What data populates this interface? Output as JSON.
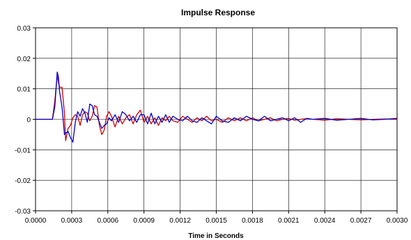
{
  "chart_data": {
    "type": "line",
    "title": "Impulse Response",
    "xlabel": "Time in Seconds",
    "ylabel": "",
    "xlim": [
      0,
      0.003
    ],
    "ylim": [
      -0.03,
      0.03
    ],
    "grid": true,
    "legend": "none",
    "x_ticks": [
      "0.0000",
      "0.0003",
      "0.0006",
      "0.0009",
      "0.0012",
      "0.0015",
      "0.0018",
      "0.0021",
      "0.0024",
      "0.0027",
      "0.0030"
    ],
    "y_ticks": [
      "0.03",
      "0.02",
      "0.01",
      "0",
      "-0.01",
      "-0.02",
      "-0.03"
    ],
    "series": [
      {
        "color": "#cc0000",
        "x": [
          0,
          0.00014,
          0.00016,
          0.00018,
          0.00019,
          0.0002,
          0.00022,
          0.00024,
          0.00025,
          0.00027,
          0.00029,
          0.00031,
          0.00033,
          0.00035,
          0.00037,
          0.00039,
          0.00041,
          0.00043,
          0.00045,
          0.00047,
          0.00049,
          0.00051,
          0.00053,
          0.00055,
          0.00057,
          0.00059,
          0.00061,
          0.00063,
          0.00066,
          0.00069,
          0.00072,
          0.00075,
          0.00078,
          0.00081,
          0.00084,
          0.00087,
          0.0009,
          0.00093,
          0.00096,
          0.00099,
          0.00102,
          0.00105,
          0.00108,
          0.00111,
          0.00114,
          0.00118,
          0.00122,
          0.00126,
          0.0013,
          0.00134,
          0.00138,
          0.00142,
          0.00146,
          0.0015,
          0.00155,
          0.0016,
          0.00165,
          0.0017,
          0.00175,
          0.0018,
          0.00185,
          0.0019,
          0.00195,
          0.002,
          0.00205,
          0.0021,
          0.00215,
          0.0022,
          0.00225,
          0.0023,
          0.0024,
          0.0025,
          0.0026,
          0.0027,
          0.0028,
          0.0029,
          0.003
        ],
        "y": [
          0,
          0,
          0.006,
          0.0145,
          0.012,
          0.0105,
          0.0105,
          0.002,
          -0.007,
          -0.003,
          -0.002,
          0.0005,
          0.0015,
          0.001,
          -0.002,
          0.0015,
          0.0025,
          0.002,
          -0.0005,
          0.001,
          0.0045,
          0.004,
          -0.002,
          -0.005,
          -0.0035,
          0.001,
          0.0025,
          0.001,
          -0.0025,
          0.001,
          -0.0015,
          0.0005,
          0.0015,
          -0.0015,
          0.0015,
          0.003,
          -0.001,
          0.001,
          -0.0015,
          0.0005,
          -0.002,
          0.0005,
          -0.0005,
          0.001,
          -0.0005,
          -0.001,
          0.001,
          0,
          -0.001,
          0.0005,
          -0.0005,
          0.001,
          -0.0005,
          0,
          -0.001,
          0.0005,
          -0.0005,
          0.0005,
          -0.0005,
          0.0005,
          -0.0005,
          0,
          0.0005,
          -0.0005,
          0,
          0.0003,
          -0.0003,
          0,
          0.0002,
          0,
          -0.0003,
          0.0002,
          0,
          -0.0002,
          0,
          0.0001,
          0
        ]
      },
      {
        "color": "#0000cc",
        "x": [
          0,
          0.00014,
          0.00016,
          0.00018,
          0.00019,
          0.0002,
          0.00022,
          0.00024,
          0.00025,
          0.00027,
          0.00029,
          0.00031,
          0.00033,
          0.00035,
          0.00037,
          0.00039,
          0.00041,
          0.00043,
          0.00045,
          0.00047,
          0.00049,
          0.00051,
          0.00053,
          0.00055,
          0.00057,
          0.00059,
          0.00061,
          0.00063,
          0.00066,
          0.00069,
          0.00072,
          0.00075,
          0.00078,
          0.00081,
          0.00084,
          0.00087,
          0.0009,
          0.00093,
          0.00096,
          0.00099,
          0.00102,
          0.00105,
          0.00108,
          0.00111,
          0.00114,
          0.00118,
          0.00122,
          0.00126,
          0.0013,
          0.00134,
          0.00138,
          0.00142,
          0.00146,
          0.0015,
          0.00155,
          0.0016,
          0.00165,
          0.0017,
          0.00175,
          0.0018,
          0.00185,
          0.0019,
          0.00195,
          0.002,
          0.00205,
          0.0021,
          0.00215,
          0.0022,
          0.00225,
          0.0023,
          0.0024,
          0.0025,
          0.0026,
          0.0027,
          0.0028,
          0.0029,
          0.003
        ],
        "y": [
          0,
          0,
          0.004,
          0.0155,
          0.014,
          0.009,
          0.004,
          -0.005,
          -0.0045,
          -0.004,
          -0.006,
          -0.0075,
          -0.001,
          0.0025,
          0.001,
          0.0035,
          0.002,
          -0.001,
          0.005,
          0.0045,
          0.0015,
          0.001,
          -0.001,
          -0.003,
          -0.002,
          -0.0015,
          0.0005,
          -0.0005,
          0.0015,
          -0.001,
          0.0025,
          0.0015,
          -0.0005,
          0.001,
          -0.001,
          0.0015,
          0.0015,
          -0.0015,
          0.002,
          -0.0015,
          0.001,
          -0.001,
          0.0015,
          -0.001,
          0.001,
          0,
          -0.0005,
          0.001,
          -0.0005,
          -0.001,
          0.0005,
          -0.0005,
          -0.0015,
          0.001,
          -0.0005,
          -0.001,
          0.0005,
          -0.0005,
          0.001,
          0,
          -0.0005,
          0.001,
          -0.0005,
          0,
          0.0005,
          -0.0005,
          0.0005,
          -0.001,
          0.0003,
          0,
          0.0003,
          -0.0003,
          0,
          0.0003,
          -0.0002,
          0,
          0.0003
        ]
      }
    ]
  }
}
